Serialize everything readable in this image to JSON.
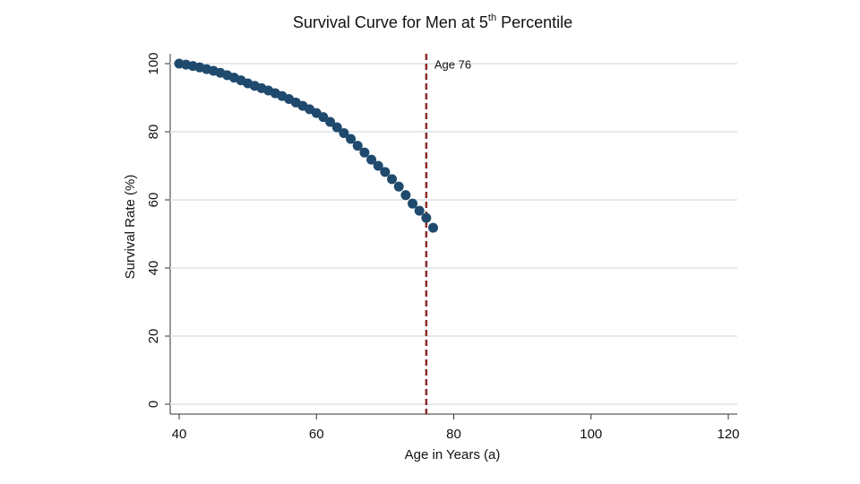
{
  "chart_data": {
    "type": "scatter",
    "title": [
      "Survival Curve for Men at 5",
      "th",
      " Percentile"
    ],
    "x_label": "Age in Years (a)",
    "y_label": "Survival Rate (%)",
    "x": [
      40,
      41,
      42,
      43,
      44,
      45,
      46,
      47,
      48,
      49,
      50,
      51,
      52,
      53,
      54,
      55,
      56,
      57,
      58,
      59,
      60,
      61,
      62,
      63,
      64,
      65,
      66,
      67,
      68,
      69,
      70,
      71,
      72,
      73,
      74,
      75,
      76,
      77
    ],
    "series": [
      {
        "name": "Survival rate",
        "color": "#1f4a6e",
        "values": [
          100,
          99.7,
          99.3,
          98.9,
          98.4,
          97.9,
          97.3,
          96.6,
          95.9,
          95.1,
          94.2,
          93.5,
          92.8,
          92.1,
          91.3,
          90.5,
          89.6,
          88.6,
          87.6,
          86.6,
          85.5,
          84.3,
          82.9,
          81.3,
          79.6,
          77.9,
          75.9,
          73.9,
          71.8,
          70.0,
          68.2,
          66.1,
          63.9,
          61.4,
          58.9,
          56.8,
          54.7,
          51.8
        ]
      }
    ],
    "xlim": [
      40,
      120
    ],
    "xticks": [
      40,
      60,
      80,
      100,
      120
    ],
    "ylim": [
      0,
      100
    ],
    "yticks": [
      0,
      20,
      40,
      60,
      80,
      100
    ],
    "grid": true,
    "vline": {
      "x": 76,
      "label": "Age 76",
      "color": "#8b2a2a"
    }
  }
}
